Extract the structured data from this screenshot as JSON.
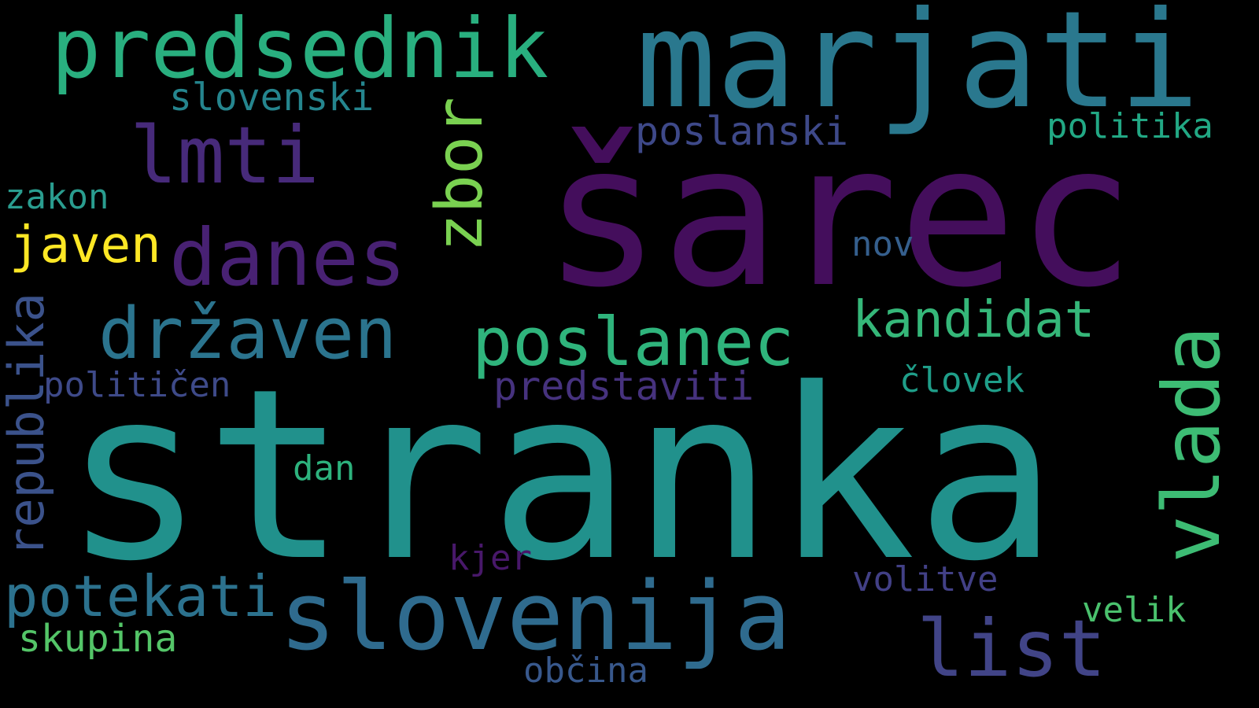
{
  "words": [
    {
      "text": "stranka",
      "color": "#21918c"
    },
    {
      "text": "šarec",
      "color": "#440e5c"
    },
    {
      "text": "marjati",
      "color": "#2a788e"
    },
    {
      "text": "predsednik",
      "color": "#29af7f"
    },
    {
      "text": "slovenija",
      "color": "#2f6b8e"
    },
    {
      "text": "državen",
      "color": "#2b748e"
    },
    {
      "text": "poslanec",
      "color": "#2fb47c"
    },
    {
      "text": "danes",
      "color": "#482173"
    },
    {
      "text": "lmti",
      "color": "#472a7a"
    },
    {
      "text": "vlada",
      "color": "#3dbc74"
    },
    {
      "text": "zbor",
      "color": "#7ad151"
    },
    {
      "text": "list",
      "color": "#414487"
    },
    {
      "text": "potekati",
      "color": "#2c728e"
    },
    {
      "text": "republika",
      "color": "#3b528b"
    },
    {
      "text": "kandidat",
      "color": "#35b779"
    },
    {
      "text": "javen",
      "color": "#fde725"
    },
    {
      "text": "predstaviti",
      "color": "#46327e"
    },
    {
      "text": "poslanski",
      "color": "#3e4989"
    },
    {
      "text": "slovenski",
      "color": "#25858e"
    },
    {
      "text": "politika",
      "color": "#22a884"
    },
    {
      "text": "zakon",
      "color": "#2a9d8f"
    },
    {
      "text": "nov",
      "color": "#355f8d"
    },
    {
      "text": "političen",
      "color": "#3e4a89"
    },
    {
      "text": "človek",
      "color": "#1f9e89"
    },
    {
      "text": "dan",
      "color": "#2db27d"
    },
    {
      "text": "kjer",
      "color": "#48186a"
    },
    {
      "text": "volitve",
      "color": "#424086"
    },
    {
      "text": "velik",
      "color": "#4ac16d"
    },
    {
      "text": "skupina",
      "color": "#54c568"
    },
    {
      "text": "občina",
      "color": "#38588c"
    }
  ]
}
